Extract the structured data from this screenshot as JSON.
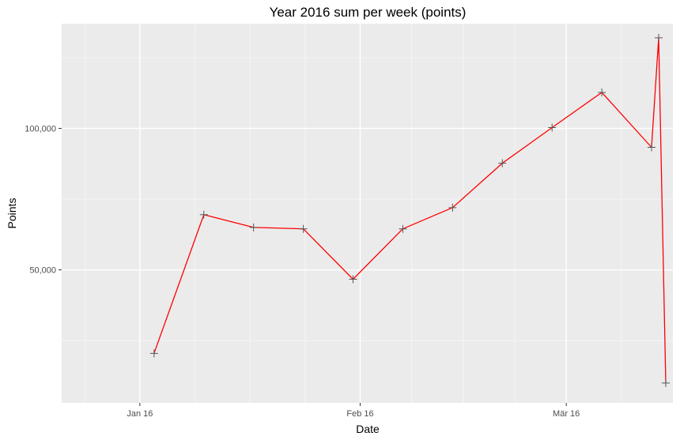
{
  "chart_data": {
    "type": "line",
    "title": "Year 2016 sum per week (points)",
    "xlabel": "Date",
    "ylabel": "Points",
    "x_axis_type": "date",
    "xlim": [
      "2016-01-05",
      "2016-03-31"
    ],
    "ylim": [
      3000,
      137000
    ],
    "x_ticks": [
      {
        "value": "2016-01-16",
        "label": "Jan 16"
      },
      {
        "value": "2016-02-16",
        "label": "Feb 16"
      },
      {
        "value": "2016-03-16",
        "label": "Mär 16"
      }
    ],
    "y_ticks": [
      {
        "value": 50000,
        "label": "50,000"
      },
      {
        "value": 100000,
        "label": "100,000"
      }
    ],
    "grid": true,
    "legend": "none",
    "series": [
      {
        "line_color": "#ff0000",
        "marker": "plus",
        "marker_color": "#555555",
        "x": [
          "2016-01-18",
          "2016-01-25",
          "2016-02-01",
          "2016-02-08",
          "2016-02-15",
          "2016-02-22",
          "2016-02-29",
          "2016-03-07",
          "2016-03-14",
          "2016-03-21",
          "2016-03-28",
          "2016-03-29"
        ],
        "y": [
          20500,
          69500,
          65000,
          64500,
          46700,
          64500,
          72000,
          87700,
          100300,
          112700,
          93300,
          132000
        ]
      }
    ],
    "last_point": {
      "x": "2016-03-30",
      "y": 10000
    }
  }
}
